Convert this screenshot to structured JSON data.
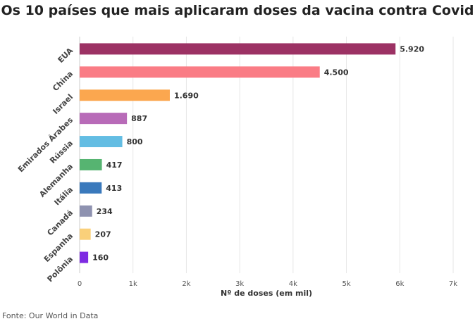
{
  "title": "Os 10 países que mais aplicaram doses da vacina contra Covid",
  "source": "Fonte: Our World in Data",
  "chart_data": {
    "type": "bar",
    "orientation": "horizontal",
    "title": "Os 10 países que mais aplicaram doses da vacina contra Covid",
    "xlabel": "Nº de doses (em mil)",
    "ylabel": "",
    "xlim": [
      0,
      7000
    ],
    "grid": true,
    "categories": [
      "EUA",
      "China",
      "Israel",
      "Emirados Árabes",
      "Rússia",
      "Alemanha",
      "Itália",
      "Canadá",
      "Espanha",
      "Polônia"
    ],
    "values": [
      5920,
      4500,
      1690,
      887,
      800,
      417,
      413,
      234,
      207,
      160
    ],
    "value_labels": [
      "5.920",
      "4.500",
      "1.690",
      "887",
      "800",
      "417",
      "413",
      "234",
      "207",
      "160"
    ],
    "colors": [
      "#9c3264",
      "#fa7c85",
      "#fba74f",
      "#b86bb8",
      "#63bde3",
      "#56b471",
      "#3a79bc",
      "#8e92b0",
      "#fad07a",
      "#7e2be2"
    ],
    "xticks": [
      0,
      1000,
      2000,
      3000,
      4000,
      5000,
      6000,
      7000
    ],
    "xtick_labels": [
      "0",
      "1k",
      "2k",
      "3k",
      "4k",
      "5k",
      "6k",
      "7k"
    ]
  }
}
